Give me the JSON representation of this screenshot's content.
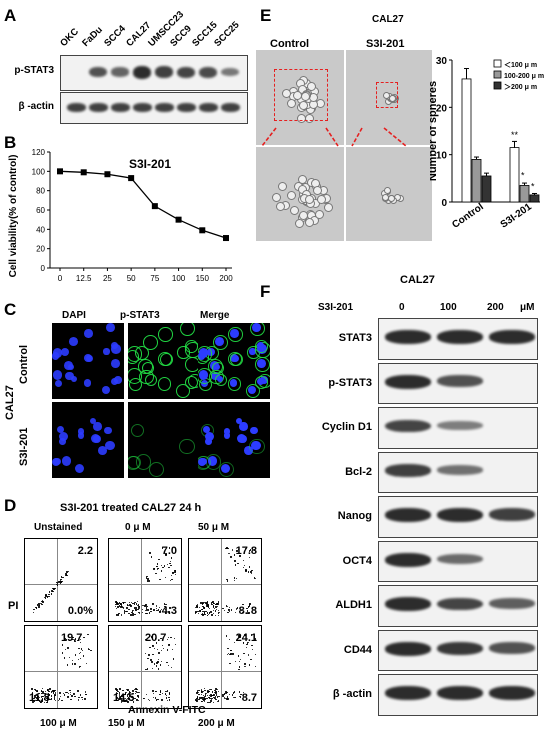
{
  "panels": {
    "A": "A",
    "B": "B",
    "C": "C",
    "D": "D",
    "E": "E",
    "F": "F"
  },
  "panelA": {
    "lanes": [
      "OKC",
      "FaDu",
      "SCC4",
      "CAL27",
      "UMSCC23",
      "SCC9",
      "SCC15",
      "SCC25"
    ],
    "rows": [
      "p-STAT3",
      "β -actin"
    ],
    "pstat3_intensity": [
      0.0,
      0.7,
      0.55,
      1.0,
      0.85,
      0.8,
      0.75,
      0.4
    ]
  },
  "panelB": {
    "chart_data": {
      "type": "line",
      "title": "S3I-201",
      "ylabel": "Cell viability(% of control)",
      "xlabel": "",
      "x": [
        0,
        12.5,
        25,
        50,
        75,
        100,
        150,
        200
      ],
      "x_ticks": [
        "0",
        "12.5",
        "25",
        "50",
        "75",
        "100",
        "150",
        "200"
      ],
      "values": [
        100,
        99,
        97,
        93,
        64,
        50,
        39,
        31
      ],
      "ylim": [
        0,
        120
      ],
      "y_ticks": [
        "0",
        "20",
        "40",
        "60",
        "80",
        "100",
        "120"
      ],
      "grid": false
    }
  },
  "panelC": {
    "columns": [
      "DAPI",
      "p-STAT3",
      "Merge"
    ],
    "rows": [
      "Control",
      "S3I-201"
    ],
    "cell_line": "CAL27",
    "colors": {
      "dapi": "#2c3cff",
      "pstat3": "#22dd44"
    }
  },
  "panelD": {
    "title": "S3I-201 treated CAL27 24 h",
    "ylabel": "PI",
    "xlabel": "Annexin V-FITC",
    "top_labels": [
      "Unstained",
      "0 μ M",
      "50 μ M"
    ],
    "bottom_labels": [
      "100 μ M",
      "150 μ M",
      "200 μ M"
    ],
    "plots": [
      {
        "ur": "2.2",
        "lr": "0.0%",
        "ul": ""
      },
      {
        "ur": "7.0",
        "lr": "4.3",
        "ul": ""
      },
      {
        "ur": "17.8",
        "lr": "8. 8",
        "ul": ""
      },
      {
        "ur": "",
        "lr": "",
        "ul": "19.7",
        "ll": "11.8"
      },
      {
        "ur": "",
        "lr": "",
        "ul": "20.7",
        "ll": "14.5"
      },
      {
        "ur": "24.1",
        "lr": "8.7",
        "ul": ""
      }
    ],
    "axis_tick": "10"
  },
  "panelE": {
    "cell_line": "CAL27",
    "image_labels": [
      "Control",
      "S3I-201"
    ],
    "chart_data": {
      "type": "bar",
      "categories": [
        "Control",
        "S3I-201"
      ],
      "series": [
        {
          "name": "＜100 μ m",
          "values": [
            26,
            11.5
          ],
          "errors": [
            2.2,
            1.3
          ]
        },
        {
          "name": "100-200 μ m",
          "values": [
            9,
            3.5
          ],
          "errors": [
            0.5,
            0.5
          ]
        },
        {
          "name": "＞200 μ m",
          "values": [
            5.5,
            1.5
          ],
          "errors": [
            0.6,
            0.3
          ]
        }
      ],
      "ylabel": "Number of spheres",
      "ylim": [
        0,
        30
      ],
      "y_ticks": [
        "0",
        "10",
        "20",
        "30"
      ],
      "annotations": [
        "**",
        "*",
        "*"
      ],
      "legend_position": "top-right"
    }
  },
  "panelF": {
    "title": "CAL27",
    "treatment": "S3I-201",
    "doses": [
      "0",
      "100",
      "200"
    ],
    "unit": "μM",
    "rows": [
      "STAT3",
      "p-STAT3",
      "Cyclin D1",
      "Bcl-2",
      "Nanog",
      "OCT4",
      "ALDH1",
      "CD44",
      "β -actin"
    ],
    "intensity": [
      [
        1,
        1,
        1
      ],
      [
        1,
        0.7,
        0
      ],
      [
        0.8,
        0.35,
        0
      ],
      [
        0.85,
        0.45,
        0
      ],
      [
        1,
        1,
        0.85
      ],
      [
        1,
        0.5,
        0
      ],
      [
        1,
        0.8,
        0.6
      ],
      [
        1,
        0.9,
        0.7
      ],
      [
        1,
        1,
        1
      ]
    ]
  }
}
